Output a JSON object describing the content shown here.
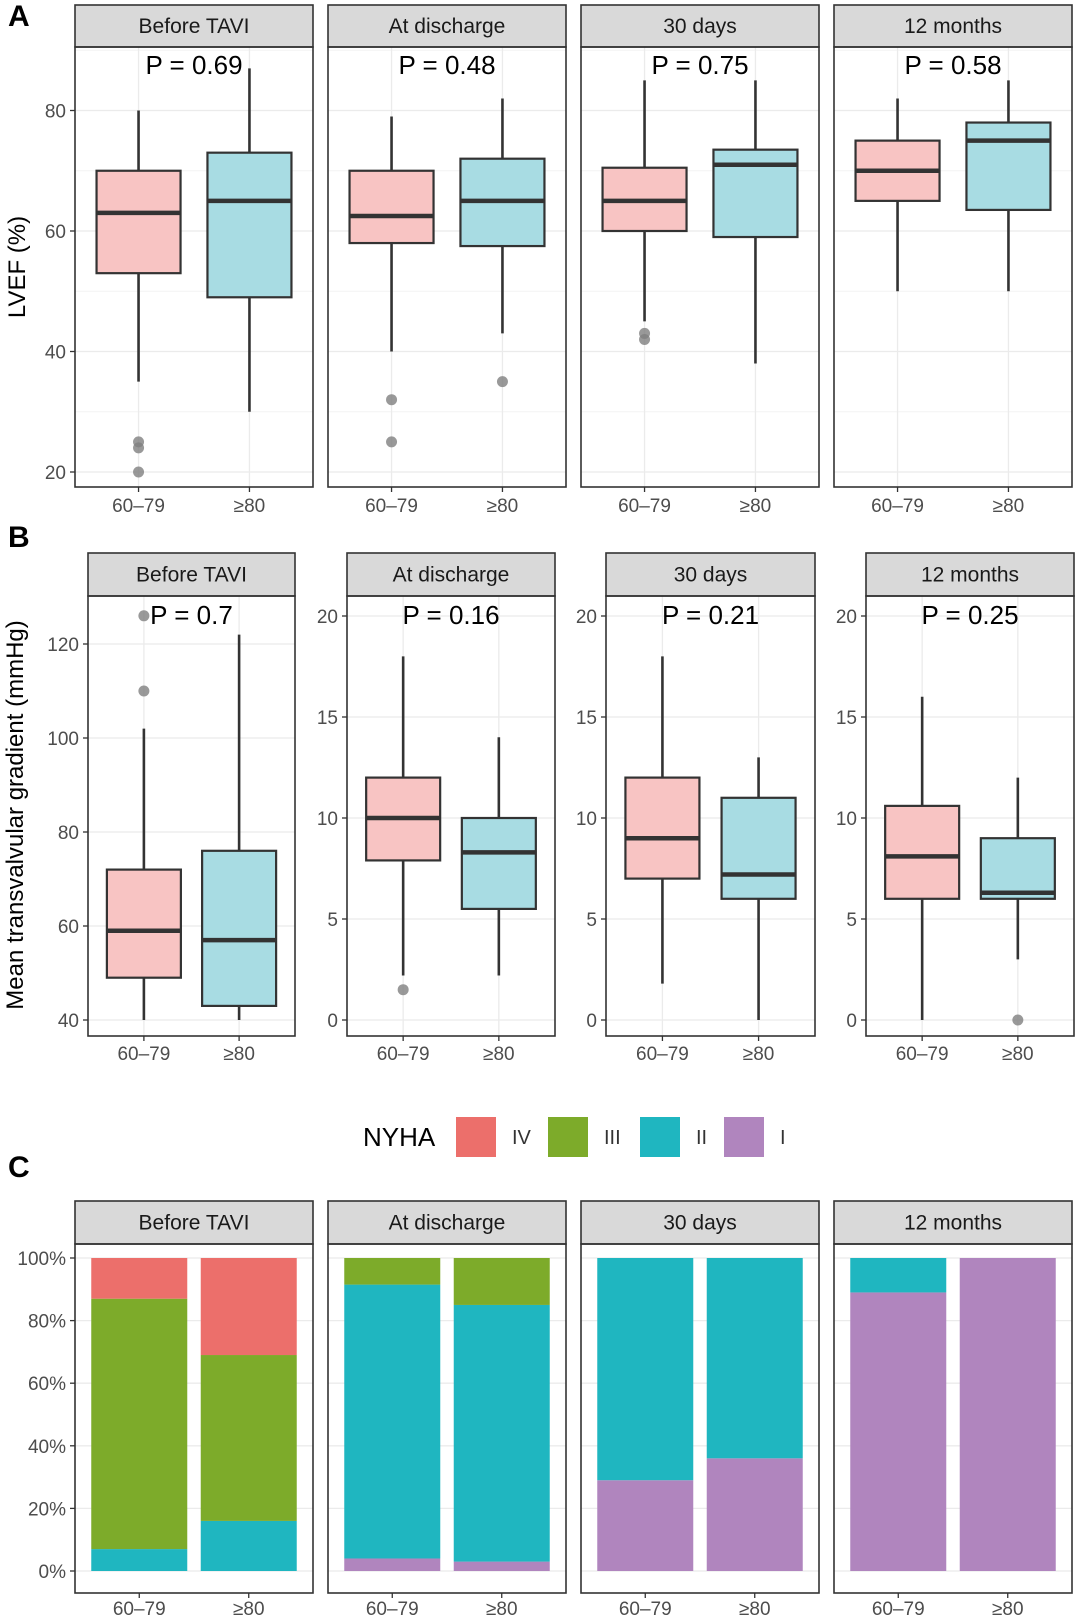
{
  "chart_data": [
    {
      "panel": "A",
      "type": "boxplot",
      "ylabel": "LVEF (%)",
      "yticks": [
        20,
        40,
        60,
        80
      ],
      "ylim": [
        17.5,
        91.5
      ],
      "categories": [
        "60–79",
        "≥80"
      ],
      "colors": [
        "#f8c4c3",
        "#a8dce3"
      ],
      "facets": [
        {
          "label": "Before TAVI",
          "p": "P = 0.69",
          "boxes": [
            {
              "q1": 53,
              "median": 63,
              "q3": 70,
              "lo": 35,
              "hi": 80,
              "outliers": [
                25,
                24,
                20
              ]
            },
            {
              "q1": 49,
              "median": 65,
              "q3": 73,
              "lo": 30,
              "hi": 87,
              "outliers": []
            }
          ]
        },
        {
          "label": "At discharge",
          "p": "P = 0.48",
          "boxes": [
            {
              "q1": 58,
              "median": 62.5,
              "q3": 70,
              "lo": 40,
              "hi": 79,
              "outliers": [
                32,
                25
              ]
            },
            {
              "q1": 57.5,
              "median": 65,
              "q3": 72,
              "lo": 43,
              "hi": 82,
              "outliers": [
                35
              ]
            }
          ]
        },
        {
          "label": "30 days",
          "p": "P = 0.75",
          "boxes": [
            {
              "q1": 60,
              "median": 65,
              "q3": 70.5,
              "lo": 45,
              "hi": 85,
              "outliers": [
                43,
                42
              ]
            },
            {
              "q1": 59,
              "median": 71,
              "q3": 73.5,
              "lo": 38,
              "hi": 85,
              "outliers": []
            }
          ]
        },
        {
          "label": "12 months",
          "p": "P = 0.58",
          "boxes": [
            {
              "q1": 65,
              "median": 70,
              "q3": 75,
              "lo": 50,
              "hi": 82,
              "outliers": []
            },
            {
              "q1": 63.5,
              "median": 75,
              "q3": 78,
              "lo": 50,
              "hi": 85,
              "outliers": []
            }
          ]
        }
      ]
    },
    {
      "panel": "B",
      "type": "boxplot",
      "ylabel": "Mean transvalvular gradient (mmHg)",
      "categories": [
        "60–79",
        "≥80"
      ],
      "colors": [
        "#f8c4c3",
        "#a8dce3"
      ],
      "facets": [
        {
          "label": "Before TAVI",
          "p": "P = 0.7",
          "yticks": [
            40,
            60,
            80,
            100,
            120
          ],
          "ylim": [
            38,
            132
          ],
          "boxes": [
            {
              "q1": 49,
              "median": 59,
              "q3": 72,
              "lo": 40,
              "hi": 102,
              "outliers": [
                126,
                110
              ]
            },
            {
              "q1": 43,
              "median": 57,
              "q3": 76,
              "lo": 40,
              "hi": 122,
              "outliers": []
            }
          ]
        },
        {
          "label": "At discharge",
          "p": "P = 0.16",
          "yticks": [
            0,
            5,
            10,
            15,
            20
          ],
          "ylim": [
            -1,
            21.5
          ],
          "boxes": [
            {
              "q1": 7.9,
              "median": 10,
              "q3": 12,
              "lo": 2.2,
              "hi": 18,
              "outliers": [
                1.5
              ]
            },
            {
              "q1": 5.5,
              "median": 8.3,
              "q3": 10,
              "lo": 2.2,
              "hi": 14,
              "outliers": []
            }
          ]
        },
        {
          "label": "30 days",
          "p": "P = 0.21",
          "yticks": [
            0,
            5,
            10,
            15,
            20
          ],
          "ylim": [
            -1,
            21.5
          ],
          "boxes": [
            {
              "q1": 7,
              "median": 9,
              "q3": 12,
              "lo": 1.8,
              "hi": 18,
              "outliers": []
            },
            {
              "q1": 6,
              "median": 7.2,
              "q3": 11,
              "lo": 0,
              "hi": 13,
              "outliers": []
            }
          ]
        },
        {
          "label": "12 months",
          "p": "P = 0.25",
          "yticks": [
            0,
            5,
            10,
            15,
            20
          ],
          "ylim": [
            -1,
            21.5
          ],
          "boxes": [
            {
              "q1": 6,
              "median": 8.1,
              "q3": 10.6,
              "lo": 0,
              "hi": 16,
              "outliers": []
            },
            {
              "q1": 6,
              "median": 6.3,
              "q3": 9,
              "lo": 3,
              "hi": 12,
              "outliers": [
                0
              ]
            }
          ]
        }
      ]
    },
    {
      "panel": "C",
      "type": "stacked_bar",
      "yticks": [
        "0%",
        "20%",
        "40%",
        "60%",
        "80%",
        "100%"
      ],
      "categories": [
        "60–79",
        "≥80"
      ],
      "legend": {
        "title": "NYHA",
        "entries": [
          {
            "label": "IV",
            "color": "#ec6f6b"
          },
          {
            "label": "III",
            "color": "#7dab2a"
          },
          {
            "label": "II",
            "color": "#1fb6c0"
          },
          {
            "label": "I",
            "color": "#b085be"
          }
        ]
      },
      "stack_order": [
        "I",
        "II",
        "III",
        "IV"
      ],
      "facets": [
        {
          "label": "Before TAVI",
          "bars": [
            {
              "I": 0,
              "II": 7,
              "III": 80,
              "IV": 13
            },
            {
              "I": 0,
              "II": 16,
              "III": 53,
              "IV": 31
            }
          ]
        },
        {
          "label": "At discharge",
          "bars": [
            {
              "I": 4,
              "II": 87.5,
              "III": 8.5,
              "IV": 0
            },
            {
              "I": 3,
              "II": 82,
              "III": 15,
              "IV": 0
            }
          ]
        },
        {
          "label": "30 days",
          "bars": [
            {
              "I": 29,
              "II": 71,
              "III": 0,
              "IV": 0
            },
            {
              "I": 36,
              "II": 64,
              "III": 0,
              "IV": 0
            }
          ]
        },
        {
          "label": "12 months",
          "bars": [
            {
              "I": 89,
              "II": 11,
              "III": 0,
              "IV": 0
            },
            {
              "I": 100,
              "II": 0,
              "III": 0,
              "IV": 0
            }
          ]
        }
      ]
    }
  ]
}
